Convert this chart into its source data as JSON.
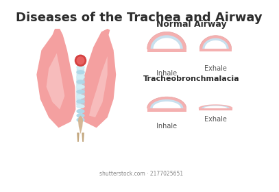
{
  "title": "Diseases of the Trachea and Airway",
  "title_fontsize": 13,
  "title_color": "#2d2d2d",
  "normal_airway_label": "Normal Airway",
  "tracheo_label": "Tracheobronchmalacia",
  "inhale_label": "Inhale",
  "exhale_label": "Exhale",
  "lung_color": "#f4a0a0",
  "lung_light": "#f9c8c8",
  "lung_shadow": "#e07070",
  "trachea_blue": "#b0d8e8",
  "trachea_pink": "#f4a0a0",
  "ring_outer": "#f4b0b0",
  "ring_mid": "#c8e0ee",
  "ring_inner_white": "#ffffff",
  "bg_color": "#ffffff",
  "label_color": "#555555",
  "section_label_color": "#2d2d2d"
}
